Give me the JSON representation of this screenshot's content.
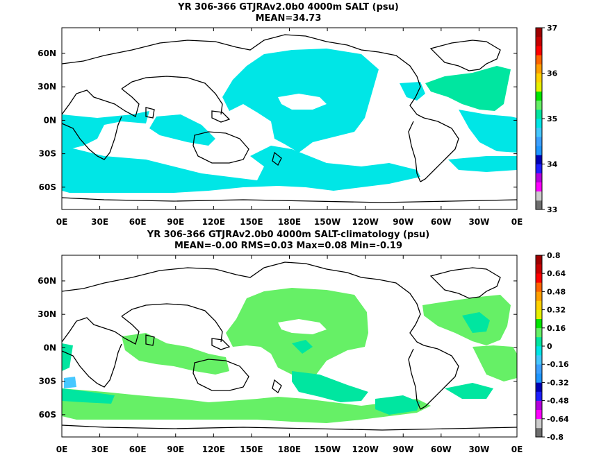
{
  "chart_data": [
    {
      "type": "heatmap",
      "title": "YR 306-366 GTJRAv2.0b0 4000m SALT (psu)",
      "subtitle": "MEAN=34.73",
      "x_ticks": [
        "0E",
        "30E",
        "60E",
        "90E",
        "120E",
        "150E",
        "180E",
        "150W",
        "120W",
        "90W",
        "60W",
        "30W",
        "0E"
      ],
      "y_ticks": [
        "60N",
        "30N",
        "0N",
        "30S",
        "60S"
      ],
      "colorbar": {
        "ticks": [
          "37",
          "36",
          "35",
          "34",
          "33"
        ],
        "range": [
          33,
          37
        ],
        "colors": [
          "#6e6e6e",
          "#cccccc",
          "#ff00ff",
          "#b400dc",
          "#1e1eff",
          "#0000b4",
          "#1e96ff",
          "#3ca0ff",
          "#46c8ff",
          "#00e6e6",
          "#00e6a0",
          "#66f066",
          "#00e600",
          "#e6f000",
          "#ffd200",
          "#ffa000",
          "#ff6400",
          "#ff0000",
          "#c80000",
          "#a00000"
        ]
      },
      "grid": false
    },
    {
      "type": "heatmap",
      "title": "YR 306-366 GTJRAv2.0b0 4000m SALT-climatology (psu)",
      "subtitle": "MEAN=-0.00   RMS=0.03   Max=0.08   Min=-0.19",
      "x_ticks": [
        "0E",
        "30E",
        "60E",
        "90E",
        "120E",
        "150E",
        "180E",
        "150W",
        "120W",
        "90W",
        "60W",
        "30W",
        "0E"
      ],
      "y_ticks": [
        "60N",
        "30N",
        "0N",
        "30S",
        "60S"
      ],
      "colorbar": {
        "ticks": [
          "0.8",
          "0.64",
          "0.48",
          "0.32",
          "0.16",
          "0",
          "-0.16",
          "-0.32",
          "-0.48",
          "-0.64",
          "-0.8"
        ],
        "range": [
          -0.8,
          0.8
        ],
        "colors": [
          "#6e6e6e",
          "#cccccc",
          "#ff00ff",
          "#b400dc",
          "#1e1eff",
          "#0000b4",
          "#1e96ff",
          "#3ca0ff",
          "#46c8ff",
          "#00e6e6",
          "#00e6a0",
          "#66f066",
          "#00e600",
          "#e6f000",
          "#ffd200",
          "#ffa000",
          "#ff6400",
          "#ff0000",
          "#c80000",
          "#a00000"
        ]
      },
      "grid": false
    }
  ]
}
